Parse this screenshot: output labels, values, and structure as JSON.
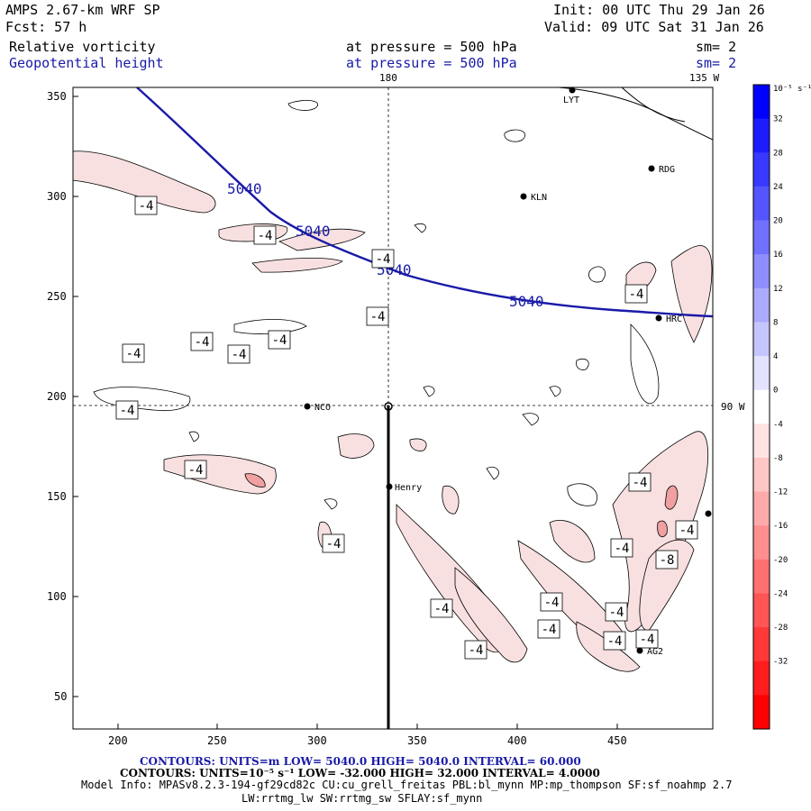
{
  "header": {
    "model": "AMPS 2.67-km WRF SP",
    "init": "Init: 00 UTC Thu 29 Jan 26",
    "forecast": "Fcst:   57 h",
    "valid": "Valid: 09 UTC Sat 31 Jan 26",
    "field1": "Relative vorticity",
    "field1_level": "at pressure =  500 hPa",
    "field1_sm": "sm= 2",
    "field2": "Geopotential height",
    "field2_level": "at pressure =  500 hPa",
    "field2_sm": "sm= 2"
  },
  "map": {
    "x_ticks": [
      "200",
      "250",
      "300",
      "350",
      "400",
      "450"
    ],
    "y_ticks": [
      "350",
      "300",
      "250",
      "200",
      "150",
      "100",
      "50"
    ],
    "top_labels": [
      "180",
      "135 W"
    ],
    "right_label": "90 W",
    "stations": [
      "LYT",
      "RDG",
      "KLN",
      "HRC",
      "NCO",
      "Henry",
      "AG2"
    ],
    "height_contour_label": "5040",
    "vort_labels": [
      "-4",
      "-4",
      "-4",
      "-4",
      "-4",
      "-4",
      "-4",
      "-4",
      "-4",
      "-4",
      "-4",
      "-4",
      "-4",
      "-4",
      "-4",
      "-4",
      "-4",
      "-4",
      "-4",
      "-4",
      "-4",
      "-4",
      "-8"
    ],
    "colors": {
      "height": "#1a1aa8",
      "vort_neg": "#f9e0e0",
      "vort_neg2": "#f0a0a0"
    }
  },
  "colorbar": {
    "unit": "10⁻⁵ s⁻¹",
    "labels": [
      "32",
      "28",
      "24",
      "20",
      "16",
      "12",
      "8",
      "4",
      "0",
      "-4",
      "-8",
      "-12",
      "-16",
      "-20",
      "-24",
      "-28",
      "-32"
    ],
    "colors": [
      "#0000ff",
      "#1c1cff",
      "#3838ff",
      "#5555ff",
      "#7171ff",
      "#8e8eff",
      "#aaaaff",
      "#c6c6ff",
      "#e3e3ff",
      "#ffffff",
      "#ffe3e3",
      "#ffc6c6",
      "#ffaaaa",
      "#ff8e8e",
      "#ff7171",
      "#ff5555",
      "#ff3838",
      "#ff1c1c",
      "#ff0000"
    ]
  },
  "footer": {
    "contours1": "CONTOURS:  UNITS=m  LOW=  5040.0      HIGH=  5040.0      INTERVAL=   60.000",
    "contours2": "CONTOURS:  UNITS=10⁻⁵ s⁻¹  LOW= -32.000      HIGH=  32.000      INTERVAL=   4.0000",
    "model_info": "Model Info: MPASv8.2.3-194-gf29cd82c CU:cu_grell_freitas PBL:bl_mynn MP:mp_thompson SF:sf_noahmp 2.7",
    "model_info2": "LW:rrtmg_lw SW:rrtmg_sw SFLAY:sf_mynn"
  }
}
